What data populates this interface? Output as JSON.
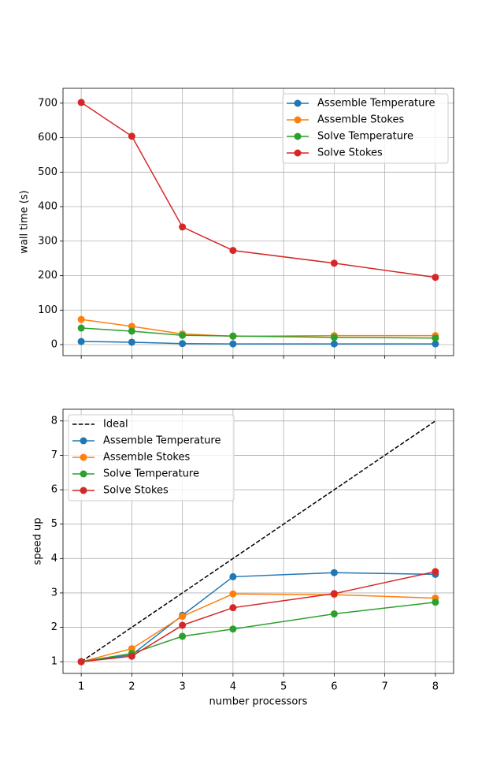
{
  "chart_data": [
    {
      "type": "line",
      "ylabel": "wall time (s)",
      "x": [
        1,
        2,
        3,
        4,
        6,
        8
      ],
      "xlim": [
        0.64,
        8.36
      ],
      "xticks": [
        1,
        2,
        3,
        4,
        5,
        6,
        7,
        8
      ],
      "ylim": [
        -32,
        743
      ],
      "yticks": [
        0,
        100,
        200,
        300,
        400,
        500,
        600,
        700
      ],
      "grid": true,
      "legend": "upper right",
      "series": [
        {
          "name": "Assemble Temperature",
          "color": "#1f77b4",
          "values": [
            9,
            7,
            3,
            2,
            2,
            2
          ]
        },
        {
          "name": "Assemble Stokes",
          "color": "#ff7f0e",
          "values": [
            73,
            53,
            31,
            24,
            26,
            26
          ]
        },
        {
          "name": "Solve Temperature",
          "color": "#2ca02c",
          "values": [
            48,
            39,
            27,
            25,
            21,
            19
          ]
        },
        {
          "name": "Solve Stokes",
          "color": "#d62728",
          "values": [
            702,
            604,
            341,
            273,
            236,
            195
          ]
        }
      ]
    },
    {
      "type": "line",
      "xlabel": "number processors",
      "ylabel": "speed up",
      "x": [
        1,
        2,
        3,
        4,
        6,
        8
      ],
      "xlim": [
        0.64,
        8.36
      ],
      "xticks": [
        1,
        2,
        3,
        4,
        5,
        6,
        7,
        8
      ],
      "ylim": [
        0.66,
        8.34
      ],
      "yticks": [
        1,
        2,
        3,
        4,
        5,
        6,
        7,
        8
      ],
      "grid": true,
      "legend": "upper left",
      "series": [
        {
          "name": "Ideal",
          "color": "#000000",
          "linestyle": "dashed",
          "marker": false,
          "values": [
            1,
            2,
            3,
            4,
            6,
            8
          ]
        },
        {
          "name": "Assemble Temperature",
          "color": "#1f77b4",
          "values": [
            1,
            1.2,
            2.35,
            3.47,
            3.59,
            3.54
          ]
        },
        {
          "name": "Assemble Stokes",
          "color": "#ff7f0e",
          "values": [
            1,
            1.38,
            2.32,
            2.97,
            2.95,
            2.85
          ]
        },
        {
          "name": "Solve Temperature",
          "color": "#2ca02c",
          "values": [
            1,
            1.24,
            1.74,
            1.95,
            2.39,
            2.73
          ]
        },
        {
          "name": "Solve Stokes",
          "color": "#d62728",
          "values": [
            1,
            1.16,
            2.06,
            2.57,
            2.98,
            3.62
          ]
        }
      ]
    }
  ]
}
